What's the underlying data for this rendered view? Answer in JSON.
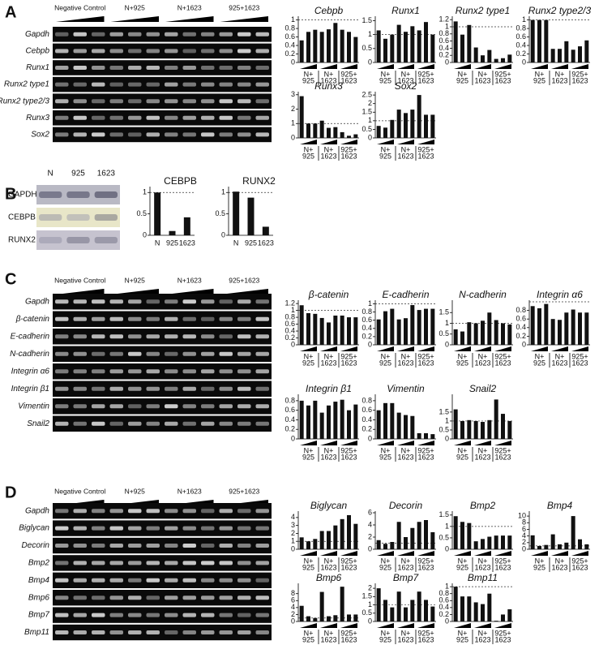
{
  "panels": [
    {
      "label": "A",
      "gel": {
        "groups": [
          "Negative Control",
          "N+925",
          "N+1623",
          "925+1623"
        ],
        "rows": [
          "Gapdh",
          "Cebpb",
          "Runx1",
          "Runx2 type1",
          "Runx2 type2/3",
          "Runx3",
          "Sox2"
        ]
      },
      "groups": [
        [
          "N+",
          "925"
        ],
        [
          "N+",
          "1623"
        ],
        [
          "925+",
          "1623"
        ]
      ],
      "charts": [
        {
          "type": "bar",
          "title": "Cebpb",
          "values": [
            0.52,
            0.72,
            0.77,
            0.72,
            0.78,
            0.93,
            0.77,
            0.72,
            0.6
          ],
          "ylim": [
            0,
            1.05
          ],
          "yticks": [
            0,
            0.2,
            0.4,
            0.6,
            0.8,
            1
          ],
          "reference_line": 1
        },
        {
          "type": "bar",
          "title": "Runx1",
          "values": [
            1.15,
            0.85,
            1.0,
            1.35,
            1.1,
            1.3,
            1.15,
            1.45,
            1.0
          ],
          "ylim": [
            0,
            1.6
          ],
          "yticks": [
            0,
            0.5,
            1,
            1.5
          ],
          "reference_line": 1
        },
        {
          "type": "bar",
          "title": "Runx2 type1",
          "values": [
            1.15,
            0.78,
            1.05,
            0.42,
            0.2,
            0.35,
            0.1,
            0.12,
            0.22
          ],
          "ylim": [
            0,
            1.25
          ],
          "yticks": [
            0,
            0.2,
            0.4,
            0.6,
            0.8,
            1,
            1.2
          ],
          "reference_line": 1
        },
        {
          "type": "bar",
          "title": "Runx2 type2/3",
          "values": [
            1.0,
            1.0,
            1.0,
            0.32,
            0.32,
            0.5,
            0.3,
            0.38,
            0.52
          ],
          "ylim": [
            0,
            1.05
          ],
          "yticks": [
            0,
            0.2,
            0.4,
            0.6,
            0.8,
            1
          ],
          "reference_line": 1
        },
        {
          "type": "bar",
          "title": "Runx3",
          "values": [
            2.9,
            1.0,
            1.0,
            1.2,
            0.7,
            0.75,
            0.4,
            0.15,
            0.25
          ],
          "ylim": [
            0,
            3.1
          ],
          "yticks": [
            0,
            1,
            2,
            3
          ],
          "reference_line": 1
        },
        {
          "type": "bar",
          "title": "Sox2",
          "values": [
            0.7,
            0.6,
            1.05,
            1.65,
            1.45,
            1.65,
            2.5,
            1.35,
            1.35
          ],
          "ylim": [
            0,
            2.6
          ],
          "yticks": [
            0,
            0.5,
            1,
            1.5,
            2,
            2.5
          ],
          "reference_line": 1
        }
      ]
    },
    {
      "label": "B",
      "gel": {
        "lanes": [
          "N",
          "925",
          "1623"
        ],
        "rows": [
          "GAPDH",
          "CEBPB",
          "RUNX2"
        ]
      },
      "charts": [
        {
          "type": "bar",
          "title": "CEBPB",
          "categories": [
            "N",
            "925",
            "1623"
          ],
          "values": [
            1,
            0.1,
            0.42
          ],
          "ylim": [
            0,
            1.1
          ],
          "yticks": [
            0,
            0.5,
            1
          ],
          "reference_line": 1
        },
        {
          "type": "bar",
          "title": "RUNX2",
          "categories": [
            "N",
            "925",
            "1623"
          ],
          "values": [
            1.02,
            0.88,
            0.2
          ],
          "ylim": [
            0,
            1.1
          ],
          "yticks": [
            0,
            0.5,
            1
          ],
          "reference_line": 1
        }
      ]
    },
    {
      "label": "C",
      "gel": {
        "groups": [
          "Negative Control",
          "N+925",
          "N+1623",
          "925+1623"
        ],
        "rows": [
          "Gapdh",
          "β-catenin",
          "E-cadherin",
          "N-cadherin",
          "Integrin α6",
          "Integrin β1",
          "Vimentin",
          "Snail2"
        ]
      },
      "groups": [
        [
          "N+",
          "925"
        ],
        [
          "N+",
          "1623"
        ],
        [
          "925+",
          "1623"
        ]
      ],
      "charts": [
        {
          "type": "bar",
          "title": "β-catenin",
          "values": [
            1.15,
            0.92,
            0.9,
            0.78,
            0.65,
            0.85,
            0.85,
            0.8,
            0.8
          ],
          "ylim": [
            0,
            1.25
          ],
          "yticks": [
            0,
            0.2,
            0.4,
            0.6,
            0.8,
            1,
            1.2
          ],
          "reference_line": 1
        },
        {
          "type": "bar",
          "title": "E-cadherin",
          "values": [
            0.62,
            0.82,
            0.88,
            0.62,
            0.65,
            0.97,
            0.85,
            0.88,
            0.88
          ],
          "ylim": [
            0,
            1.05
          ],
          "yticks": [
            0,
            0.2,
            0.4,
            0.6,
            0.8,
            1
          ],
          "reference_line": 1
        },
        {
          "type": "bar",
          "title": "N-cadherin",
          "values": [
            0.72,
            0.62,
            1.05,
            1.0,
            1.12,
            1.5,
            1.15,
            1.0,
            0.95
          ],
          "ylim": [
            0,
            2
          ],
          "yticks": [
            0,
            0.5,
            1,
            1.5
          ],
          "reference_line": 1
        },
        {
          "type": "bar",
          "title": "Integrin α6",
          "values": [
            0.9,
            0.85,
            0.95,
            0.6,
            0.58,
            0.75,
            0.82,
            0.75,
            0.75
          ],
          "ylim": [
            0,
            1
          ],
          "yticks": [
            0,
            0.2,
            0.4,
            0.6,
            0.8
          ],
          "reference_line": 1
        },
        {
          "type": "bar",
          "title": "Integrin β1",
          "values": [
            0.8,
            0.7,
            0.8,
            0.55,
            0.7,
            0.78,
            0.82,
            0.6,
            0.72
          ],
          "ylim": [
            0,
            0.9
          ],
          "yticks": [
            0,
            0.2,
            0.4,
            0.6,
            0.8
          ]
        },
        {
          "type": "bar",
          "title": "Vimentin",
          "values": [
            0.6,
            0.75,
            0.75,
            0.55,
            0.5,
            0.48,
            0.12,
            0.12,
            0.1
          ],
          "ylim": [
            0,
            0.9
          ],
          "yticks": [
            0,
            0.2,
            0.4,
            0.6,
            0.8
          ]
        },
        {
          "type": "bar",
          "title": "Snail2",
          "values": [
            1.65,
            1.0,
            1.05,
            1.0,
            0.95,
            1.05,
            2.2,
            1.4,
            1.0
          ],
          "ylim": [
            0,
            2.4
          ],
          "yticks": [
            0,
            0.5,
            1,
            1.5
          ],
          "reference_line": 1
        }
      ]
    },
    {
      "label": "D",
      "gel": {
        "groups": [
          "Negative Control",
          "N+925",
          "N+1623",
          "925+1623"
        ],
        "rows": [
          "Gapdh",
          "Biglycan",
          "Decorin",
          "Bmp2",
          "Bmp4",
          "Bmp6",
          "Bmp7",
          "Bmp11"
        ]
      },
      "groups": [
        [
          "N+",
          "925"
        ],
        [
          "N+",
          "1623"
        ],
        [
          "925+",
          "1623"
        ]
      ],
      "charts": [
        {
          "type": "bar",
          "title": "Biglycan",
          "values": [
            1.5,
            1.0,
            1.3,
            2.3,
            2.3,
            3.0,
            3.8,
            4.3,
            3.2
          ],
          "ylim": [
            0,
            4.6
          ],
          "yticks": [
            0,
            1,
            2,
            3,
            4
          ],
          "reference_line": 1
        },
        {
          "type": "bar",
          "title": "Decorin",
          "values": [
            1.5,
            0.9,
            1.2,
            4.5,
            2.0,
            3.5,
            4.5,
            4.8,
            2.8
          ],
          "ylim": [
            0,
            6
          ],
          "yticks": [
            0,
            2,
            4,
            6
          ],
          "reference_line": 1
        },
        {
          "type": "bar",
          "title": "Bmp2",
          "values": [
            1.45,
            1.2,
            1.15,
            0.35,
            0.45,
            0.55,
            0.6,
            0.6,
            0.6
          ],
          "ylim": [
            0,
            1.6
          ],
          "yticks": [
            0,
            0.5,
            1,
            1.5
          ],
          "reference_line": 1
        },
        {
          "type": "bar",
          "title": "Bmp4",
          "values": [
            4.2,
            1.0,
            1.3,
            4.5,
            1.5,
            2.0,
            10,
            3.0,
            1.5
          ],
          "ylim": [
            0,
            11
          ],
          "yticks": [
            0,
            2,
            4,
            6,
            8,
            10
          ],
          "reference_line": 1
        },
        {
          "type": "bar",
          "title": "Bmp6",
          "values": [
            4.5,
            1.5,
            1.0,
            8.5,
            1.5,
            1.8,
            10,
            2.0,
            2.0
          ],
          "ylim": [
            0,
            10.5
          ],
          "yticks": [
            0,
            2,
            4,
            6,
            8
          ],
          "reference_line": 1
        },
        {
          "type": "bar",
          "title": "Bmp7",
          "values": [
            2.0,
            1.3,
            0.85,
            1.8,
            0.85,
            1.3,
            1.8,
            1.3,
            0.9
          ],
          "ylim": [
            0,
            2.2
          ],
          "yticks": [
            0,
            0.5,
            1,
            1.5,
            2
          ],
          "reference_line": 1
        },
        {
          "type": "bar",
          "title": "Bmp11",
          "values": [
            1.0,
            0.72,
            0.72,
            0.55,
            0.5,
            0.8,
            0.02,
            0.2,
            0.35
          ],
          "ylim": [
            0,
            1.05
          ],
          "yticks": [
            0,
            0.2,
            0.4,
            0.6,
            0.8,
            1
          ],
          "reference_line": 1
        }
      ]
    }
  ]
}
